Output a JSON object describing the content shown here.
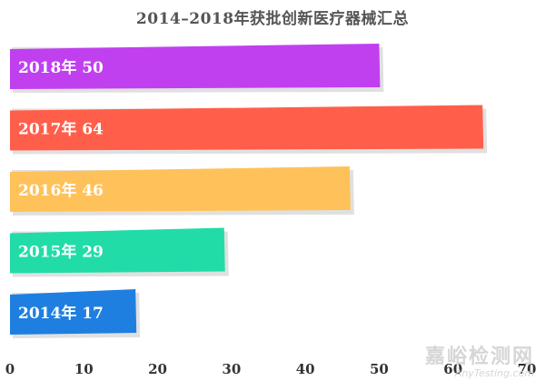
{
  "chart_data": {
    "type": "bar",
    "orientation": "horizontal",
    "title": "2014–2018年获批创新医疗器械汇总",
    "xlabel": "",
    "ylabel": "",
    "xlim": [
      0,
      70
    ],
    "x_ticks": [
      0,
      10,
      20,
      30,
      40,
      50,
      60,
      70
    ],
    "grid": false,
    "legend": "none",
    "bars": [
      {
        "category": "2018年",
        "value": 50,
        "label": "2018年 50",
        "color": "#c040f0"
      },
      {
        "category": "2017年",
        "value": 64,
        "label": "2017年 64",
        "color": "#ff5f4a"
      },
      {
        "category": "2016年",
        "value": 46,
        "label": "2016年 46",
        "color": "#ffc25a"
      },
      {
        "category": "2015年",
        "value": 29,
        "label": "2015年 29",
        "color": "#22dca8"
      },
      {
        "category": "2014年",
        "value": 17,
        "label": "2014年 17",
        "color": "#1f7fe0"
      }
    ]
  },
  "watermark": {
    "logo": "嘉峪检测网",
    "sub": "AnyTesting.com"
  }
}
